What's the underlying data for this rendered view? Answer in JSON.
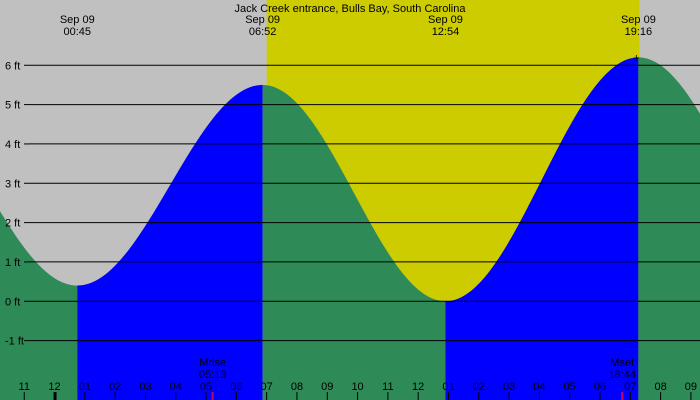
{
  "chart_data": {
    "type": "area",
    "title": "Jack Creek entrance, Bulls Bay, South Carolina",
    "xlabel": "",
    "ylabel": "",
    "y_unit": "ft",
    "ylim": [
      -1.9,
      7.1
    ],
    "y_ticks": [
      {
        "value": -1,
        "label": "-1 ft"
      },
      {
        "value": 0,
        "label": "0 ft"
      },
      {
        "value": 1,
        "label": "1 ft"
      },
      {
        "value": 2,
        "label": "2 ft"
      },
      {
        "value": 3,
        "label": "3 ft"
      },
      {
        "value": 4,
        "label": "4 ft"
      },
      {
        "value": 5,
        "label": "5 ft"
      },
      {
        "value": 6,
        "label": "6 ft"
      }
    ],
    "grid": true,
    "xlim_hours": [
      -1.8,
      21.3
    ],
    "daylight_hours": [
      7.0,
      19.3
    ],
    "tide_events": [
      {
        "type": "low",
        "date": "Sep 09",
        "time": "00:45",
        "hour": 0.75,
        "height_ft": 0.4
      },
      {
        "type": "high",
        "date": "Sep 09",
        "time": "06:52",
        "hour": 6.867,
        "height_ft": 5.5
      },
      {
        "type": "low",
        "date": "Sep 09",
        "time": "12:54",
        "hour": 12.9,
        "height_ft": 0.0
      },
      {
        "type": "high",
        "date": "Sep 09",
        "time": "19:16",
        "hour": 19.267,
        "height_ft": 6.2
      }
    ],
    "hour_ticks": [
      {
        "hour": -1,
        "label": "11"
      },
      {
        "hour": 0,
        "label": "12"
      },
      {
        "hour": 1,
        "label": "01"
      },
      {
        "hour": 2,
        "label": "02"
      },
      {
        "hour": 3,
        "label": "03"
      },
      {
        "hour": 4,
        "label": "04"
      },
      {
        "hour": 5,
        "label": "05"
      },
      {
        "hour": 6,
        "label": "06"
      },
      {
        "hour": 7,
        "label": "07"
      },
      {
        "hour": 8,
        "label": "08"
      },
      {
        "hour": 9,
        "label": "09"
      },
      {
        "hour": 10,
        "label": "10"
      },
      {
        "hour": 11,
        "label": "11"
      },
      {
        "hour": 12,
        "label": "12"
      },
      {
        "hour": 13,
        "label": "01"
      },
      {
        "hour": 14,
        "label": "02"
      },
      {
        "hour": 15,
        "label": "03"
      },
      {
        "hour": 16,
        "label": "04"
      },
      {
        "hour": 17,
        "label": "05"
      },
      {
        "hour": 18,
        "label": "06"
      },
      {
        "hour": 19,
        "label": "07"
      },
      {
        "hour": 20,
        "label": "08"
      },
      {
        "hour": 21,
        "label": "09"
      }
    ],
    "moon_events": [
      {
        "label": "Mrise",
        "time": "05:13",
        "hour": 5.217
      },
      {
        "label": "Mset",
        "time": "18:44",
        "hour": 18.733
      }
    ],
    "colors": {
      "night": "#c0c0c0",
      "day": "#cccc00",
      "rising": "#0000ff",
      "falling": "#2e8b57",
      "grid": "#000000",
      "moon_marker": "#cc0066"
    }
  }
}
